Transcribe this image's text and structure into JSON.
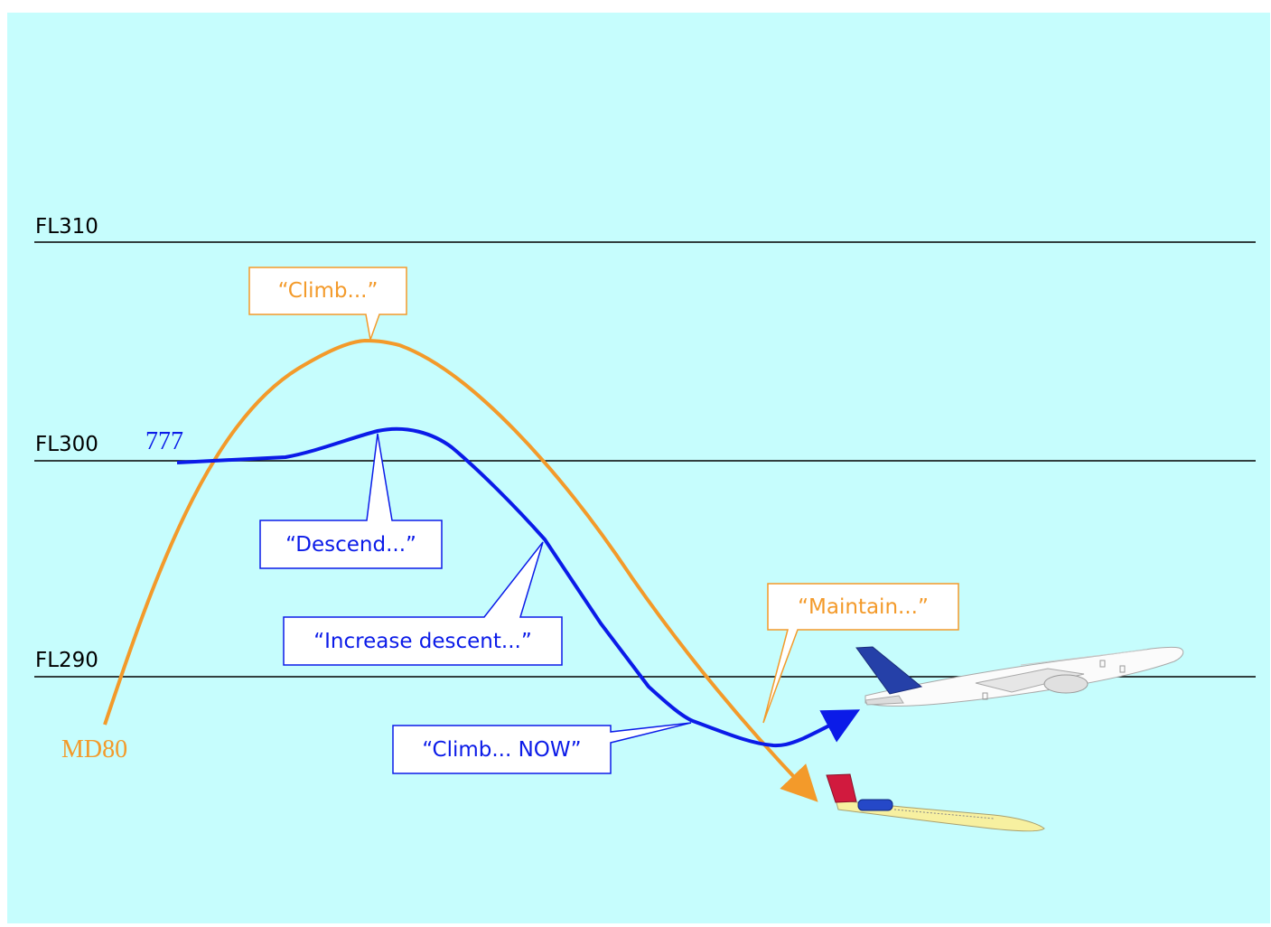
{
  "flight_levels": [
    {
      "label": "FL310"
    },
    {
      "label": "FL300"
    },
    {
      "label": "FL290"
    }
  ],
  "aircraft": {
    "md80": {
      "label": "MD80",
      "color": "#f39a2a"
    },
    "b777": {
      "label": "777",
      "color": "#0b1be8"
    }
  },
  "callouts": {
    "climb": "“Climb...”",
    "descend": "“Descend...”",
    "increase_descent": "“Increase descent...”",
    "maintain": "“Maintain...”",
    "climb_now": "“Climb... NOW”"
  },
  "colors": {
    "background": "#c6fdfd",
    "md80": "#f39a2a",
    "b777": "#0b1be8",
    "airplane_777_tail": "#2540a8",
    "airplane_md80_tail": "#d11a3e",
    "airplane_md80_body": "#f7f0a0"
  }
}
